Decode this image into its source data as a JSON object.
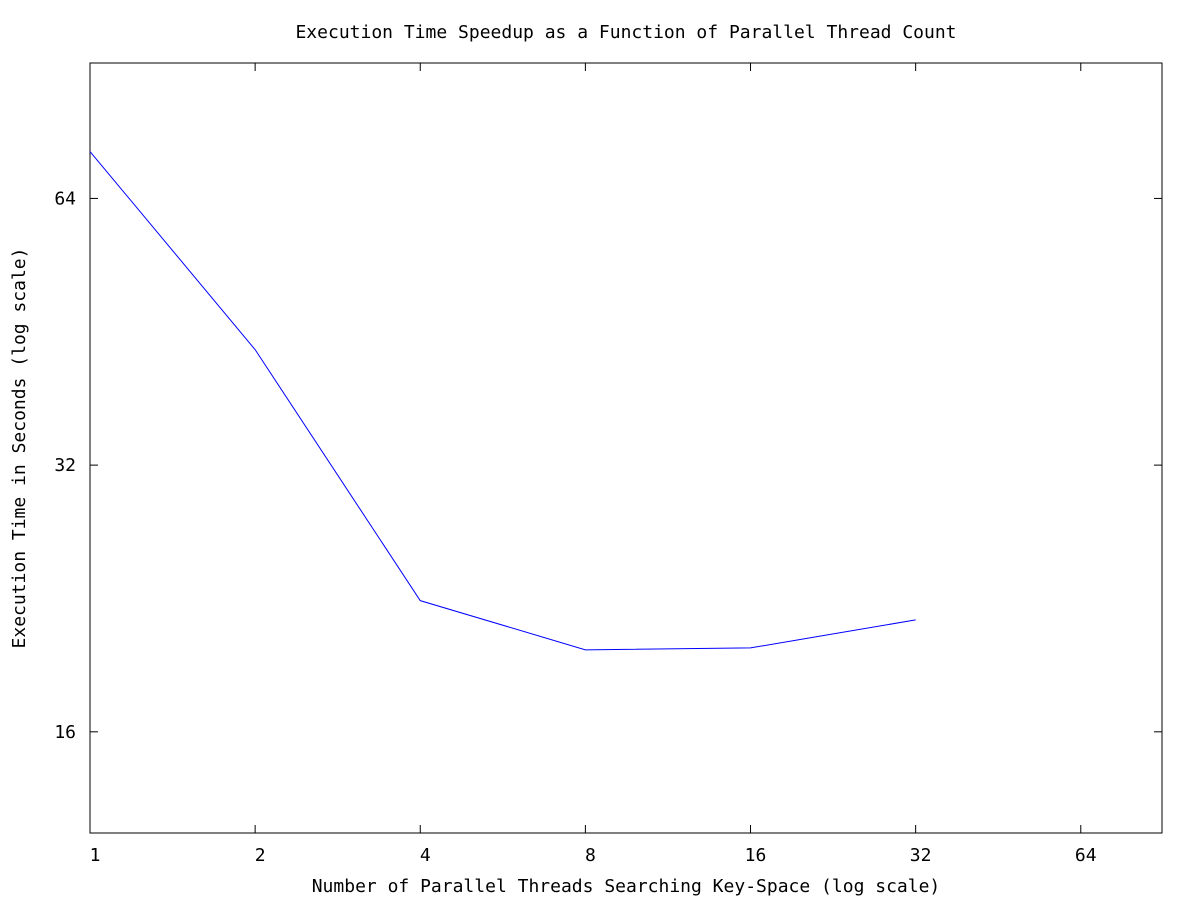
{
  "chart_data": {
    "type": "line",
    "title": "Execution Time Speedup as a Function of Parallel Thread Count",
    "xlabel": "Number of Parallel Threads Searching Key-Space (log scale)",
    "ylabel": "Execution Time in Seconds (log scale)",
    "xscale": "log2",
    "yscale": "log2",
    "xlim": [
      1,
      90
    ],
    "ylim": [
      12.3,
      91
    ],
    "xticks": [
      1,
      2,
      4,
      8,
      16,
      32,
      64
    ],
    "xtick_labels": [
      "1",
      "2",
      "4",
      "8",
      "16",
      "32",
      "64"
    ],
    "yticks": [
      16,
      32,
      64
    ],
    "ytick_labels": [
      "16",
      "32",
      "64"
    ],
    "grid": false,
    "legend": "none",
    "series": [
      {
        "color": "#0000ff",
        "x": [
          1,
          2,
          4,
          8,
          16,
          32
        ],
        "y": [
          72.3,
          43.2,
          22.5,
          19.8,
          19.9,
          21.4
        ]
      }
    ]
  }
}
